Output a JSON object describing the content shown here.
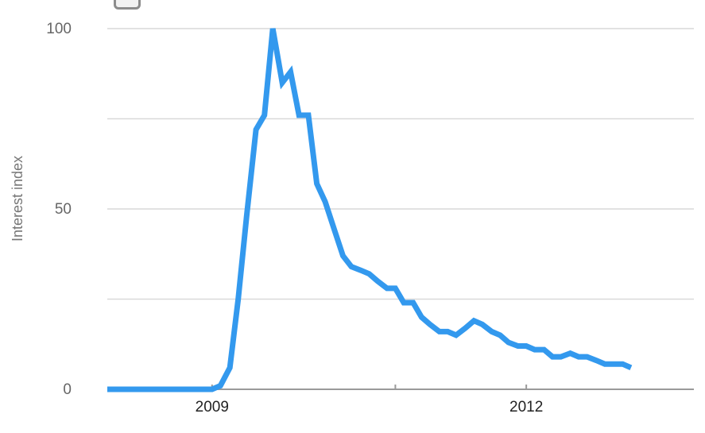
{
  "chart_data": {
    "type": "line",
    "ylabel": "Interest index",
    "xlabel": "",
    "title": "",
    "ylim": [
      0,
      100
    ],
    "yticks": [
      0,
      50,
      100
    ],
    "ytick_labels": [
      "0",
      "50",
      "100"
    ],
    "minor_gridlines": [
      25,
      75
    ],
    "xlim": [
      2008.0,
      2013.6
    ],
    "xticks": [
      2009,
      2012
    ],
    "xtick_labels": [
      "2009",
      "2012"
    ],
    "minor_xticks": [
      2010.75
    ],
    "grid": true,
    "legend": "none",
    "color": "#3399ee",
    "series": [
      {
        "values": [
          [
            2008.0,
            0
          ],
          [
            2008.25,
            0
          ],
          [
            2008.5,
            0
          ],
          [
            2008.75,
            0
          ],
          [
            2008.92,
            0
          ],
          [
            2009.0,
            0
          ],
          [
            2009.08,
            1
          ],
          [
            2009.17,
            6
          ],
          [
            2009.25,
            25
          ],
          [
            2009.33,
            48
          ],
          [
            2009.42,
            72
          ],
          [
            2009.5,
            76
          ],
          [
            2009.58,
            100
          ],
          [
            2009.67,
            85
          ],
          [
            2009.75,
            88
          ],
          [
            2009.83,
            76
          ],
          [
            2009.92,
            76
          ],
          [
            2010.0,
            57
          ],
          [
            2010.08,
            52
          ],
          [
            2010.17,
            44
          ],
          [
            2010.25,
            37
          ],
          [
            2010.33,
            34
          ],
          [
            2010.42,
            33
          ],
          [
            2010.5,
            32
          ],
          [
            2010.58,
            30
          ],
          [
            2010.67,
            28
          ],
          [
            2010.75,
            28
          ],
          [
            2010.83,
            24
          ],
          [
            2010.92,
            24
          ],
          [
            2011.0,
            20
          ],
          [
            2011.08,
            18
          ],
          [
            2011.17,
            16
          ],
          [
            2011.25,
            16
          ],
          [
            2011.33,
            15
          ],
          [
            2011.42,
            17
          ],
          [
            2011.5,
            19
          ],
          [
            2011.58,
            18
          ],
          [
            2011.67,
            16
          ],
          [
            2011.75,
            15
          ],
          [
            2011.83,
            13
          ],
          [
            2011.92,
            12
          ],
          [
            2012.0,
            12
          ],
          [
            2012.08,
            11
          ],
          [
            2012.17,
            11
          ],
          [
            2012.25,
            9
          ],
          [
            2012.33,
            9
          ],
          [
            2012.42,
            10
          ],
          [
            2012.5,
            9
          ],
          [
            2012.58,
            9
          ],
          [
            2012.67,
            8
          ],
          [
            2012.75,
            7
          ],
          [
            2012.83,
            7
          ],
          [
            2012.92,
            7
          ],
          [
            2013.0,
            6
          ]
        ]
      }
    ]
  }
}
